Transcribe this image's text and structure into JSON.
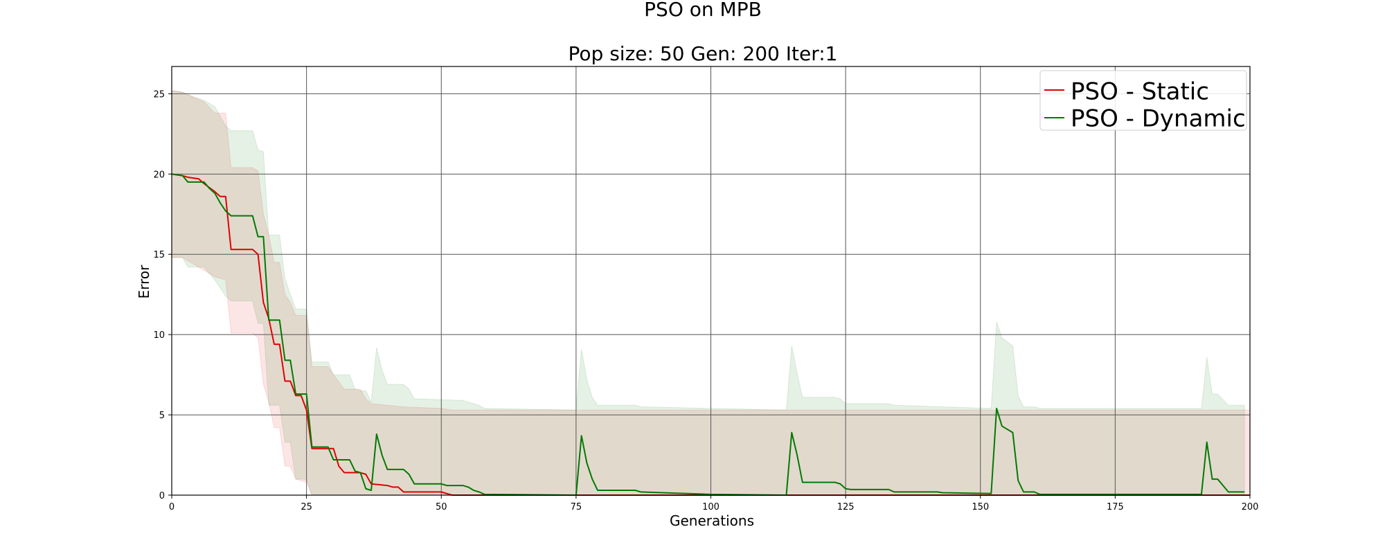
{
  "chart_data": {
    "type": "line",
    "title": "PSO on MPB",
    "subtitle": "Pop size: 50  Gen: 200  Iter:1",
    "xlabel": "Generations",
    "ylabel": "Error",
    "xlim": [
      0,
      200
    ],
    "ylim": [
      0,
      26.7
    ],
    "xticks": [
      0,
      25,
      50,
      75,
      100,
      125,
      150,
      175,
      200
    ],
    "yticks": [
      0,
      5,
      10,
      15,
      20,
      25
    ],
    "grid": true,
    "legend_position": "top-right",
    "colors": {
      "static": "#e00000",
      "dynamic": "#007a00",
      "grid": "#555555"
    },
    "series": [
      {
        "name": "PSO - Static",
        "color": "#e00000",
        "points": [
          [
            0,
            20
          ],
          [
            2,
            19.9
          ],
          [
            3,
            19.8
          ],
          [
            5,
            19.7
          ],
          [
            6,
            19.4
          ],
          [
            8,
            18.9
          ],
          [
            9,
            18.6
          ],
          [
            10,
            18.6
          ],
          [
            11,
            15.3
          ],
          [
            15,
            15.3
          ],
          [
            16,
            15.0
          ],
          [
            17,
            12.0
          ],
          [
            18,
            11.0
          ],
          [
            19,
            9.4
          ],
          [
            20,
            9.4
          ],
          [
            21,
            7.1
          ],
          [
            22,
            7.1
          ],
          [
            23,
            6.2
          ],
          [
            24,
            6.2
          ],
          [
            25,
            5.3
          ],
          [
            26,
            2.9
          ],
          [
            29,
            2.9
          ],
          [
            30,
            2.9
          ],
          [
            31,
            1.8
          ],
          [
            32,
            1.4
          ],
          [
            35,
            1.4
          ],
          [
            36,
            1.3
          ],
          [
            37,
            0.7
          ],
          [
            40,
            0.6
          ],
          [
            41,
            0.5
          ],
          [
            42,
            0.5
          ],
          [
            43,
            0.2
          ],
          [
            50,
            0.2
          ],
          [
            52,
            0
          ],
          [
            200,
            0
          ]
        ],
        "band_upper": [
          [
            0,
            25.2
          ],
          [
            2,
            25.1
          ],
          [
            4,
            24.8
          ],
          [
            6,
            24.5
          ],
          [
            8,
            23.8
          ],
          [
            10,
            23.8
          ],
          [
            11,
            20.4
          ],
          [
            15,
            20.4
          ],
          [
            16,
            20.2
          ],
          [
            17,
            17.5
          ],
          [
            18,
            16.2
          ],
          [
            19,
            14.5
          ],
          [
            20,
            14.5
          ],
          [
            21,
            12.5
          ],
          [
            22,
            12.0
          ],
          [
            23,
            11.2
          ],
          [
            25,
            11.2
          ],
          [
            26,
            8.0
          ],
          [
            29,
            8.0
          ],
          [
            30,
            7.5
          ],
          [
            32,
            6.6
          ],
          [
            35,
            6.6
          ],
          [
            36,
            6.0
          ],
          [
            37,
            5.7
          ],
          [
            43,
            5.5
          ],
          [
            50,
            5.4
          ],
          [
            52,
            5.3
          ],
          [
            200,
            5.3
          ]
        ],
        "band_lower": [
          [
            0,
            14.8
          ],
          [
            2,
            14.8
          ],
          [
            4,
            14.4
          ],
          [
            6,
            14.0
          ],
          [
            8,
            13.6
          ],
          [
            10,
            13.4
          ],
          [
            11,
            10.1
          ],
          [
            15,
            10.1
          ],
          [
            16,
            9.8
          ],
          [
            17,
            6.9
          ],
          [
            18,
            5.8
          ],
          [
            19,
            4.2
          ],
          [
            20,
            4.2
          ],
          [
            21,
            1.8
          ],
          [
            22,
            1.8
          ],
          [
            23,
            1.0
          ],
          [
            25,
            0.8
          ],
          [
            26,
            0
          ],
          [
            200,
            0
          ]
        ]
      },
      {
        "name": "PSO - Dynamic",
        "color": "#007a00",
        "points": [
          [
            0,
            20
          ],
          [
            2,
            19.9
          ],
          [
            3,
            19.5
          ],
          [
            6,
            19.5
          ],
          [
            7,
            19.1
          ],
          [
            8,
            18.8
          ],
          [
            9,
            18.2
          ],
          [
            10,
            17.7
          ],
          [
            11,
            17.4
          ],
          [
            15,
            17.4
          ],
          [
            16,
            16.1
          ],
          [
            17,
            16.1
          ],
          [
            18,
            10.9
          ],
          [
            20,
            10.9
          ],
          [
            21,
            8.4
          ],
          [
            22,
            8.4
          ],
          [
            23,
            6.3
          ],
          [
            25,
            6.3
          ],
          [
            26,
            3.0
          ],
          [
            29,
            3.0
          ],
          [
            30,
            2.2
          ],
          [
            32,
            2.2
          ],
          [
            33,
            2.2
          ],
          [
            34,
            1.5
          ],
          [
            35,
            1.4
          ],
          [
            36,
            0.4
          ],
          [
            37,
            0.3
          ],
          [
            38,
            3.8
          ],
          [
            39,
            2.5
          ],
          [
            40,
            1.6
          ],
          [
            43,
            1.6
          ],
          [
            44,
            1.3
          ],
          [
            45,
            0.7
          ],
          [
            50,
            0.7
          ],
          [
            51,
            0.6
          ],
          [
            54,
            0.6
          ],
          [
            55,
            0.5
          ],
          [
            56,
            0.3
          ],
          [
            57,
            0.2
          ],
          [
            58,
            0.05
          ],
          [
            75,
            0
          ],
          [
            76,
            3.7
          ],
          [
            77,
            2.0
          ],
          [
            78,
            1.0
          ],
          [
            79,
            0.3
          ],
          [
            86,
            0.3
          ],
          [
            87,
            0.2
          ],
          [
            91,
            0.15
          ],
          [
            100,
            0.05
          ],
          [
            114,
            0
          ],
          [
            115,
            3.9
          ],
          [
            116,
            2.5
          ],
          [
            117,
            0.8
          ],
          [
            123,
            0.8
          ],
          [
            124,
            0.7
          ],
          [
            125,
            0.4
          ],
          [
            126,
            0.35
          ],
          [
            133,
            0.35
          ],
          [
            134,
            0.2
          ],
          [
            142,
            0.2
          ],
          [
            143,
            0.15
          ],
          [
            152,
            0.1
          ],
          [
            153,
            5.4
          ],
          [
            154,
            4.3
          ],
          [
            156,
            3.9
          ],
          [
            157,
            0.9
          ],
          [
            158,
            0.2
          ],
          [
            160,
            0.2
          ],
          [
            161,
            0.05
          ],
          [
            191,
            0.05
          ],
          [
            192,
            3.3
          ],
          [
            193,
            1.0
          ],
          [
            194,
            1.0
          ],
          [
            196,
            0.2
          ],
          [
            199,
            0.2
          ]
        ],
        "band_upper": [
          [
            0,
            25.2
          ],
          [
            2,
            25.1
          ],
          [
            4,
            24.8
          ],
          [
            6,
            24.6
          ],
          [
            8,
            24.2
          ],
          [
            10,
            23.0
          ],
          [
            11,
            22.7
          ],
          [
            15,
            22.7
          ],
          [
            16,
            21.5
          ],
          [
            17,
            21.4
          ],
          [
            18,
            16.2
          ],
          [
            20,
            16.2
          ],
          [
            21,
            13.5
          ],
          [
            22,
            12.5
          ],
          [
            23,
            11.6
          ],
          [
            25,
            11.6
          ],
          [
            26,
            8.3
          ],
          [
            29,
            8.3
          ],
          [
            30,
            7.5
          ],
          [
            33,
            7.5
          ],
          [
            34,
            6.6
          ],
          [
            35,
            6.5
          ],
          [
            36,
            6.5
          ],
          [
            37,
            5.8
          ],
          [
            38,
            9.2
          ],
          [
            39,
            7.8
          ],
          [
            40,
            6.9
          ],
          [
            43,
            6.9
          ],
          [
            44,
            6.6
          ],
          [
            45,
            6.0
          ],
          [
            54,
            5.9
          ],
          [
            57,
            5.6
          ],
          [
            58,
            5.4
          ],
          [
            75,
            5.3
          ],
          [
            76,
            9.1
          ],
          [
            77,
            7.2
          ],
          [
            78,
            6.1
          ],
          [
            79,
            5.6
          ],
          [
            86,
            5.6
          ],
          [
            87,
            5.5
          ],
          [
            114,
            5.3
          ],
          [
            115,
            9.3
          ],
          [
            116,
            7.6
          ],
          [
            117,
            6.1
          ],
          [
            123,
            6.1
          ],
          [
            124,
            6.0
          ],
          [
            125,
            5.7
          ],
          [
            133,
            5.7
          ],
          [
            134,
            5.6
          ],
          [
            152,
            5.4
          ],
          [
            153,
            10.8
          ],
          [
            154,
            9.8
          ],
          [
            156,
            9.3
          ],
          [
            157,
            6.2
          ],
          [
            158,
            5.5
          ],
          [
            160,
            5.5
          ],
          [
            161,
            5.4
          ],
          [
            191,
            5.4
          ],
          [
            192,
            8.6
          ],
          [
            193,
            6.3
          ],
          [
            194,
            6.3
          ],
          [
            196,
            5.6
          ],
          [
            199,
            5.6
          ]
        ],
        "band_lower": [
          [
            0,
            14.8
          ],
          [
            2,
            14.8
          ],
          [
            3,
            14.2
          ],
          [
            6,
            14.2
          ],
          [
            8,
            13.4
          ],
          [
            10,
            12.4
          ],
          [
            11,
            12.1
          ],
          [
            15,
            12.1
          ],
          [
            16,
            10.7
          ],
          [
            17,
            10.7
          ],
          [
            18,
            5.6
          ],
          [
            20,
            5.6
          ],
          [
            21,
            3.3
          ],
          [
            22,
            3.3
          ],
          [
            23,
            1.0
          ],
          [
            25,
            1.0
          ],
          [
            26,
            0
          ],
          [
            199,
            0
          ]
        ]
      }
    ]
  }
}
